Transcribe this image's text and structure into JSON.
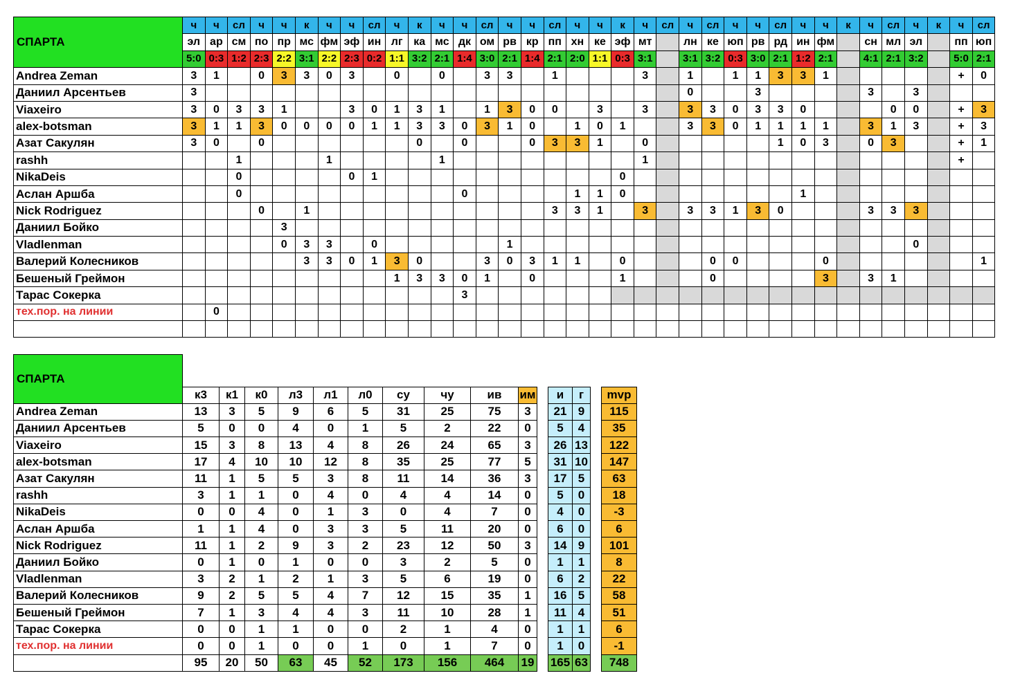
{
  "team": "СПАРТА",
  "matches": [
    {
      "type": "ч",
      "opp": "эл",
      "score": "5:0",
      "res": "w"
    },
    {
      "type": "ч",
      "opp": "ар",
      "score": "0:3",
      "res": "l"
    },
    {
      "type": "сл",
      "opp": "см",
      "score": "1:2",
      "res": "l"
    },
    {
      "type": "ч",
      "opp": "по",
      "score": "2:3",
      "res": "l"
    },
    {
      "type": "ч",
      "opp": "пр",
      "score": "2:2",
      "res": "d"
    },
    {
      "type": "к",
      "opp": "мс",
      "score": "3:1",
      "res": "w"
    },
    {
      "type": "ч",
      "opp": "фм",
      "score": "2:2",
      "res": "d"
    },
    {
      "type": "ч",
      "opp": "эф",
      "score": "2:3",
      "res": "l"
    },
    {
      "type": "сл",
      "opp": "ин",
      "score": "0:2",
      "res": "l"
    },
    {
      "type": "ч",
      "opp": "лг",
      "score": "1:1",
      "res": "d"
    },
    {
      "type": "к",
      "opp": "ка",
      "score": "3:2",
      "res": "w"
    },
    {
      "type": "ч",
      "opp": "мс",
      "score": "2:1",
      "res": "w"
    },
    {
      "type": "ч",
      "opp": "дк",
      "score": "1:4",
      "res": "l"
    },
    {
      "type": "сл",
      "opp": "ом",
      "score": "3:0",
      "res": "w"
    },
    {
      "type": "ч",
      "opp": "рв",
      "score": "2:1",
      "res": "w"
    },
    {
      "type": "ч",
      "opp": "кр",
      "score": "1:4",
      "res": "l"
    },
    {
      "type": "сл",
      "opp": "пп",
      "score": "2:1",
      "res": "w"
    },
    {
      "type": "ч",
      "opp": "хн",
      "score": "2:0",
      "res": "w"
    },
    {
      "type": "ч",
      "opp": "ке",
      "score": "1:1",
      "res": "d"
    },
    {
      "type": "к",
      "opp": "эф",
      "score": "0:3",
      "res": "l"
    },
    {
      "type": "ч",
      "opp": "мт",
      "score": "3:1",
      "res": "w"
    },
    {
      "type": "сл",
      "opp": "",
      "score": "",
      "res": "gray"
    },
    {
      "type": "ч",
      "opp": "лн",
      "score": "3:1",
      "res": "w"
    },
    {
      "type": "сл",
      "opp": "ке",
      "score": "3:2",
      "res": "w"
    },
    {
      "type": "ч",
      "opp": "юп",
      "score": "0:3",
      "res": "l"
    },
    {
      "type": "ч",
      "opp": "рв",
      "score": "3:0",
      "res": "w"
    },
    {
      "type": "сл",
      "opp": "рд",
      "score": "2:1",
      "res": "w"
    },
    {
      "type": "ч",
      "opp": "ин",
      "score": "1:2",
      "res": "l"
    },
    {
      "type": "ч",
      "opp": "фм",
      "score": "2:1",
      "res": "w"
    },
    {
      "type": "к",
      "opp": "",
      "score": "",
      "res": "gray"
    },
    {
      "type": "ч",
      "opp": "сн",
      "score": "4:1",
      "res": "w"
    },
    {
      "type": "сл",
      "opp": "мл",
      "score": "2:1",
      "res": "w"
    },
    {
      "type": "ч",
      "opp": "эл",
      "score": "3:2",
      "res": "w"
    },
    {
      "type": "к",
      "opp": "",
      "score": "",
      "res": "gray"
    },
    {
      "type": "ч",
      "opp": "пп",
      "score": "5:0",
      "res": "w"
    },
    {
      "type": "сл",
      "opp": "юп",
      "score": "2:1",
      "res": "w"
    }
  ],
  "players": [
    {
      "name": "Andrea Zeman",
      "cells": [
        "3",
        "1",
        "",
        "0",
        "3*",
        "3",
        "0",
        "3",
        "",
        "0",
        "",
        "0",
        "",
        "3",
        "3",
        "",
        "1",
        "",
        "",
        "",
        "3",
        "",
        "1",
        "",
        "1",
        "1",
        "3*",
        "3*",
        "1",
        "",
        "",
        "",
        "",
        "",
        "+",
        "0"
      ]
    },
    {
      "name": "Даниил Арсентьев",
      "cells": [
        "3",
        "",
        "",
        "",
        "",
        "",
        "",
        "",
        "",
        "",
        "",
        "",
        "",
        "",
        "",
        "",
        "",
        "",
        "",
        "",
        "",
        "",
        "0",
        "",
        "",
        "3",
        "",
        "",
        "",
        "",
        "3",
        "",
        "3",
        "",
        "",
        ""
      ]
    },
    {
      "name": "Viaxeiro",
      "cells": [
        "3",
        "0",
        "3",
        "3",
        "1",
        "",
        "",
        "3",
        "0",
        "1",
        "3",
        "1",
        "",
        "1",
        "3*",
        "0",
        "0",
        "",
        "3",
        "",
        "3",
        "",
        "3*",
        "3",
        "0",
        "3",
        "3",
        "0",
        "",
        "",
        "",
        "0",
        "0",
        "",
        "+",
        "3*"
      ]
    },
    {
      "name": "alex-botsman",
      "cells": [
        "3*",
        "1",
        "1",
        "3*",
        "0",
        "0",
        "0",
        "0",
        "1",
        "1",
        "3",
        "3",
        "0",
        "3*",
        "1",
        "0",
        "",
        "1",
        "0",
        "1",
        "",
        "",
        "3",
        "3*",
        "0",
        "1",
        "1",
        "1",
        "1",
        "",
        "3*",
        "1",
        "3",
        "",
        "+",
        "3"
      ]
    },
    {
      "name": "Азат Сакулян",
      "cells": [
        "3",
        "0",
        "",
        "0",
        "",
        "",
        "",
        "",
        "",
        "",
        "0",
        "",
        "0",
        "",
        "",
        "0",
        "3*",
        "3*",
        "1",
        "",
        "0",
        "",
        "",
        "",
        "",
        "",
        "1",
        "0",
        "3",
        "",
        "0",
        "3*",
        "",
        "",
        "+",
        "1"
      ]
    },
    {
      "name": "rashh",
      "cells": [
        "",
        "",
        "1",
        "",
        "",
        "",
        "1",
        "",
        "",
        "",
        "",
        "1",
        "",
        "",
        "",
        "",
        "",
        "",
        "",
        "",
        "1",
        "",
        "",
        "",
        "",
        "",
        "",
        "",
        "",
        "",
        "",
        "",
        "",
        "",
        "+",
        ""
      ]
    },
    {
      "name": "NikaDeis",
      "cells": [
        "",
        "",
        "0",
        "",
        "",
        "",
        "",
        "0",
        "1",
        "",
        "",
        "",
        "",
        "",
        "",
        "",
        "",
        "",
        "",
        "0",
        "",
        "",
        "",
        "",
        "",
        "",
        "",
        "",
        "",
        "",
        "",
        "",
        "",
        "",
        "",
        ""
      ]
    },
    {
      "name": "Аслан Аршба",
      "cells": [
        "",
        "",
        "0",
        "",
        "",
        "",
        "",
        "",
        "",
        "",
        "",
        "",
        "0",
        "",
        "",
        "",
        "",
        "1",
        "1",
        "0",
        "",
        "",
        "",
        "",
        "",
        "",
        "",
        "1",
        "",
        "",
        "",
        "",
        "",
        "",
        "",
        ""
      ]
    },
    {
      "name": "Nick Rodriguez",
      "cells": [
        "",
        "",
        "",
        "0",
        "",
        "1",
        "",
        "",
        "",
        "",
        "",
        "",
        "",
        "",
        "",
        "",
        "3",
        "3",
        "1",
        "",
        "3*",
        "",
        "3",
        "3",
        "1",
        "3*",
        "0",
        "",
        "",
        "",
        "3",
        "3",
        "3*",
        "",
        "",
        ""
      ]
    },
    {
      "name": "Даниил Бойко",
      "cells": [
        "",
        "",
        "",
        "",
        "3",
        "",
        "",
        "",
        "",
        "",
        "",
        "",
        "",
        "",
        "",
        "",
        "",
        "",
        "",
        "",
        "",
        "",
        "",
        "",
        "",
        "",
        "",
        "",
        "",
        "",
        "",
        "",
        "",
        "",
        "",
        ""
      ]
    },
    {
      "name": "Vladlenman",
      "cells": [
        "",
        "",
        "",
        "",
        "0",
        "3",
        "3",
        "",
        "0",
        "",
        "",
        "",
        "",
        "",
        "1",
        "",
        "",
        "",
        "",
        "",
        "",
        "",
        "",
        "",
        "",
        "",
        "",
        "",
        "",
        "",
        "",
        "",
        "0",
        "",
        "",
        ""
      ]
    },
    {
      "name": "Валерий Колесников",
      "cells": [
        "",
        "",
        "",
        "",
        "",
        "3",
        "3",
        "0",
        "1",
        "3*",
        "0",
        "",
        "",
        "3",
        "0",
        "3",
        "1",
        "1",
        "",
        "0",
        "",
        "",
        "",
        "0",
        "0",
        "",
        "",
        "",
        "0",
        "",
        "",
        "",
        "",
        "",
        "",
        "1"
      ]
    },
    {
      "name": "Бешеный Греймон",
      "cells": [
        "",
        "",
        "",
        "",
        "",
        "",
        "",
        "",
        "",
        "1",
        "3",
        "3",
        "0",
        "1",
        "",
        "0",
        "",
        "",
        "",
        "1",
        "",
        "",
        "",
        "0",
        "",
        "",
        "",
        "",
        "3*",
        "",
        "3",
        "1",
        "",
        "",
        "",
        ""
      ]
    },
    {
      "name": "Тарас Сокерка",
      "cells": [
        "",
        "",
        "",
        "",
        "",
        "",
        "",
        "",
        "",
        "",
        "",
        "",
        "3",
        "",
        "",
        "",
        "",
        "",
        "",
        "",
        "",
        "",
        "",
        "",
        "",
        "",
        "",
        "",
        "",
        "",
        "",
        "",
        "",
        "",
        "",
        ""
      ]
    },
    {
      "name": "тех.пор. на линии",
      "special": true,
      "cells": [
        "",
        "0",
        "",
        "",
        "",
        "",
        "",
        "",
        "",
        "",
        "",
        "",
        "",
        "",
        "",
        "",
        "",
        "",
        "",
        "",
        "",
        "",
        "",
        "",
        "",
        "",
        "",
        "",
        "",
        "",
        "",
        "",
        "",
        "",
        "",
        ""
      ]
    }
  ],
  "stats_headers": [
    "к3",
    "к1",
    "к0",
    "л3",
    "л1",
    "л0",
    "су",
    "чу",
    "ив",
    "им",
    "и",
    "г",
    "mvp"
  ],
  "stats": [
    {
      "name": "Andrea Zeman",
      "v": [
        "13",
        "3",
        "5",
        "9",
        "6",
        "5",
        "31",
        "25",
        "75",
        "3",
        "21",
        "9",
        "115"
      ]
    },
    {
      "name": "Даниил Арсентьев",
      "v": [
        "5",
        "0",
        "0",
        "4",
        "0",
        "1",
        "5",
        "2",
        "22",
        "0",
        "5",
        "4",
        "35"
      ]
    },
    {
      "name": "Viaxeiro",
      "v": [
        "15",
        "3",
        "8",
        "13",
        "4",
        "8",
        "26",
        "24",
        "65",
        "3",
        "26",
        "13",
        "122"
      ]
    },
    {
      "name": "alex-botsman",
      "v": [
        "17",
        "4",
        "10",
        "10",
        "12",
        "8",
        "35",
        "25",
        "77",
        "5",
        "31",
        "10",
        "147"
      ]
    },
    {
      "name": "Азат Сакулян",
      "v": [
        "11",
        "1",
        "5",
        "5",
        "3",
        "8",
        "11",
        "14",
        "36",
        "3",
        "17",
        "5",
        "63"
      ]
    },
    {
      "name": "rashh",
      "v": [
        "3",
        "1",
        "1",
        "0",
        "4",
        "0",
        "4",
        "4",
        "14",
        "0",
        "5",
        "0",
        "18"
      ]
    },
    {
      "name": "NikaDeis",
      "v": [
        "0",
        "0",
        "4",
        "0",
        "1",
        "3",
        "0",
        "4",
        "7",
        "0",
        "4",
        "0",
        "-3"
      ]
    },
    {
      "name": "Аслан Аршба",
      "v": [
        "1",
        "1",
        "4",
        "0",
        "3",
        "3",
        "5",
        "11",
        "20",
        "0",
        "6",
        "0",
        "6"
      ]
    },
    {
      "name": "Nick Rodriguez",
      "v": [
        "11",
        "1",
        "2",
        "9",
        "3",
        "2",
        "23",
        "12",
        "50",
        "3",
        "14",
        "9",
        "101"
      ]
    },
    {
      "name": "Даниил Бойко",
      "v": [
        "0",
        "1",
        "0",
        "1",
        "0",
        "0",
        "3",
        "2",
        "5",
        "0",
        "1",
        "1",
        "8"
      ]
    },
    {
      "name": "Vladlenman",
      "v": [
        "3",
        "2",
        "1",
        "2",
        "1",
        "3",
        "5",
        "6",
        "19",
        "0",
        "6",
        "2",
        "22"
      ]
    },
    {
      "name": "Валерий Колесников",
      "v": [
        "9",
        "2",
        "5",
        "5",
        "4",
        "7",
        "12",
        "15",
        "35",
        "1",
        "16",
        "5",
        "58"
      ]
    },
    {
      "name": "Бешеный Греймон",
      "v": [
        "7",
        "1",
        "3",
        "4",
        "4",
        "3",
        "11",
        "10",
        "28",
        "1",
        "11",
        "4",
        "51"
      ]
    },
    {
      "name": "Тарас Сокерка",
      "v": [
        "0",
        "0",
        "1",
        "1",
        "0",
        "0",
        "2",
        "1",
        "4",
        "0",
        "1",
        "1",
        "6"
      ]
    },
    {
      "name": "тех.пор. на линии",
      "special": true,
      "v": [
        "0",
        "0",
        "1",
        "0",
        "0",
        "1",
        "0",
        "1",
        "7",
        "0",
        "1",
        "0",
        "-1"
      ]
    }
  ],
  "totals": [
    "95",
    "20",
    "50",
    "63",
    "45",
    "52",
    "173",
    "156",
    "464",
    "19",
    "165",
    "63",
    "748"
  ],
  "colors": {
    "title_green": "#22e022",
    "type_blue": "#33b5ea",
    "win": "#33cc33",
    "draw": "#f7f728",
    "loss": "#e92b2b",
    "highlight": "#f9bb33",
    "gray": "#d9d9d9",
    "cyan": "#c5eefb",
    "total_green": "#77cc55",
    "red_text": "#e03030"
  }
}
